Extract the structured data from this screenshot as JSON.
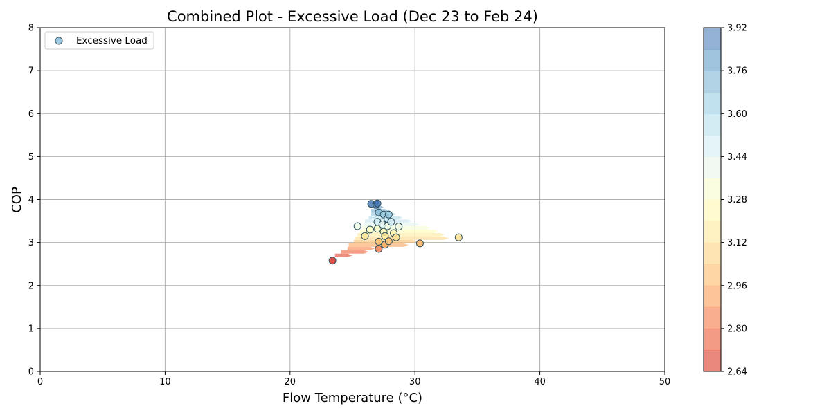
{
  "chart_data": {
    "type": "scatter",
    "title": "Combined Plot - Excessive Load (Dec 23 to Feb 24)",
    "xlabel": "Flow Temperature (°C)",
    "ylabel": "COP",
    "xlim": [
      0,
      50
    ],
    "ylim": [
      0,
      8
    ],
    "x_ticks": [
      "0",
      "10",
      "20",
      "30",
      "40",
      "50"
    ],
    "y_ticks": [
      "0",
      "1",
      "2",
      "3",
      "4",
      "5",
      "6",
      "7",
      "8"
    ],
    "grid": true,
    "legend": {
      "placement": "upper-left",
      "entries": [
        "Excessive Load"
      ]
    },
    "colormap": "RdYlBu",
    "colorbar": {
      "min": 2.64,
      "max": 3.92,
      "ticks": [
        "2.64",
        "2.80",
        "2.96",
        "3.12",
        "3.28",
        "3.44",
        "3.60",
        "3.76",
        "3.92"
      ]
    },
    "contour_bands": [
      {
        "y": 2.7,
        "x0": 23.6,
        "x1": 25.0
      },
      {
        "y": 2.78,
        "x0": 24.1,
        "x1": 26.3
      },
      {
        "y": 2.86,
        "x0": 24.6,
        "x1": 26.8
      },
      {
        "y": 2.94,
        "x0": 24.7,
        "x1": 29.5
      },
      {
        "y": 3.02,
        "x0": 25.1,
        "x1": 30.2
      },
      {
        "y": 3.1,
        "x0": 25.2,
        "x1": 32.7
      },
      {
        "y": 3.18,
        "x0": 25.4,
        "x1": 32.4
      },
      {
        "y": 3.26,
        "x0": 25.6,
        "x1": 31.9
      },
      {
        "y": 3.34,
        "x0": 25.8,
        "x1": 31.3
      },
      {
        "y": 3.42,
        "x0": 25.9,
        "x1": 30.4
      },
      {
        "y": 3.5,
        "x0": 26.0,
        "x1": 29.8
      },
      {
        "y": 3.58,
        "x0": 26.3,
        "x1": 29.0
      },
      {
        "y": 3.66,
        "x0": 26.5,
        "x1": 28.5
      },
      {
        "y": 3.74,
        "x0": 26.5,
        "x1": 28.0
      },
      {
        "y": 3.82,
        "x0": 26.7,
        "x1": 27.5
      },
      {
        "y": 3.9,
        "x0": 26.8,
        "x1": 27.2
      }
    ],
    "points": [
      {
        "x": 23.4,
        "y": 2.58,
        "cop": 2.64
      },
      {
        "x": 25.4,
        "y": 3.38,
        "cop": 3.38
      },
      {
        "x": 26.0,
        "y": 3.15,
        "cop": 3.15
      },
      {
        "x": 26.4,
        "y": 3.3,
        "cop": 3.3
      },
      {
        "x": 26.5,
        "y": 3.9,
        "cop": 3.9
      },
      {
        "x": 26.9,
        "y": 3.88,
        "cop": 3.88
      },
      {
        "x": 27.0,
        "y": 3.91,
        "cop": 3.91
      },
      {
        "x": 27.0,
        "y": 3.48,
        "cop": 3.48
      },
      {
        "x": 27.1,
        "y": 3.7,
        "cop": 3.7
      },
      {
        "x": 27.0,
        "y": 3.32,
        "cop": 3.32
      },
      {
        "x": 27.1,
        "y": 3.02,
        "cop": 3.02
      },
      {
        "x": 27.1,
        "y": 2.85,
        "cop": 2.85
      },
      {
        "x": 27.4,
        "y": 3.42,
        "cop": 3.42
      },
      {
        "x": 27.5,
        "y": 3.65,
        "cop": 3.65
      },
      {
        "x": 27.5,
        "y": 3.25,
        "cop": 3.25
      },
      {
        "x": 27.6,
        "y": 3.15,
        "cop": 3.15
      },
      {
        "x": 27.6,
        "y": 2.95,
        "cop": 2.95
      },
      {
        "x": 27.8,
        "y": 3.55,
        "cop": 3.55
      },
      {
        "x": 27.8,
        "y": 3.38,
        "cop": 3.38
      },
      {
        "x": 27.9,
        "y": 3.65,
        "cop": 3.65
      },
      {
        "x": 27.9,
        "y": 3.03,
        "cop": 3.03
      },
      {
        "x": 28.1,
        "y": 3.48,
        "cop": 3.48
      },
      {
        "x": 28.3,
        "y": 3.22,
        "cop": 3.22
      },
      {
        "x": 28.5,
        "y": 3.12,
        "cop": 3.12
      },
      {
        "x": 28.7,
        "y": 3.37,
        "cop": 3.37
      },
      {
        "x": 30.4,
        "y": 2.98,
        "cop": 2.98
      },
      {
        "x": 33.5,
        "y": 3.12,
        "cop": 3.12
      }
    ]
  }
}
